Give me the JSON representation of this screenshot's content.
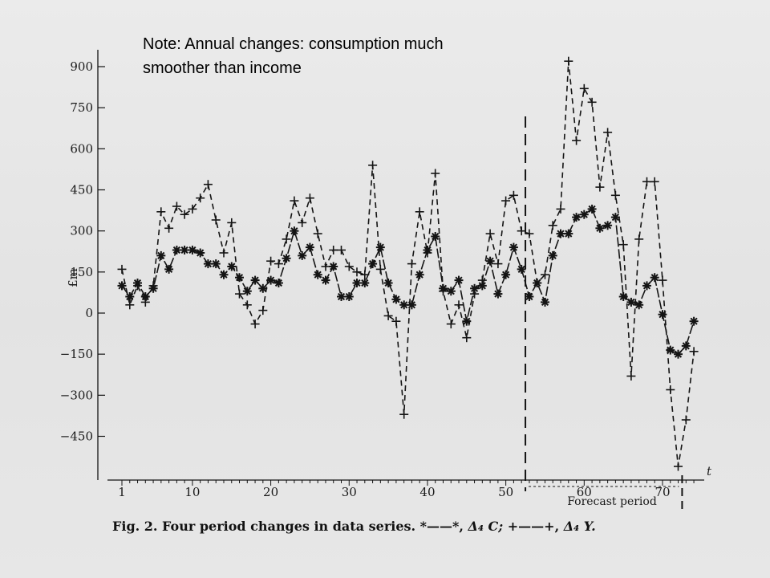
{
  "note": {
    "line1": "Note: Annual changes: consumption much",
    "line2": "smoother than income"
  },
  "caption": {
    "fig": "Fig. 2.",
    "text": "Four period changes in data series.",
    "legend_c_marker": "*——*,",
    "legend_c_symbol": "Δ₄ C;",
    "legend_y_marker": "+——+,",
    "legend_y_symbol": "Δ₄ Y."
  },
  "chart_data": {
    "type": "line",
    "ylabel": "£m",
    "xlabel": "t",
    "annotation": "Forecast period",
    "yticks": [
      900,
      750,
      600,
      450,
      300,
      150,
      0,
      -150,
      -300,
      -450
    ],
    "ytick_labels": [
      "900",
      "750",
      "600",
      "450",
      "300",
      "150",
      "0",
      "−150",
      "−300",
      "−450"
    ],
    "xticks": [
      1,
      10,
      20,
      30,
      40,
      50,
      60,
      70
    ],
    "xtick_labels": [
      "1",
      "10",
      "20",
      "30",
      "40",
      "50",
      "60",
      "70"
    ],
    "ylim": [
      -560,
      960
    ],
    "xlim": [
      0,
      75
    ],
    "forecast_start": 52.5,
    "forecast_end": 72.5,
    "x": [
      1,
      2,
      3,
      4,
      5,
      6,
      7,
      8,
      9,
      10,
      11,
      12,
      13,
      14,
      15,
      16,
      17,
      18,
      19,
      20,
      21,
      22,
      23,
      24,
      25,
      26,
      27,
      28,
      29,
      30,
      31,
      32,
      33,
      34,
      35,
      36,
      37,
      38,
      39,
      40,
      41,
      42,
      43,
      44,
      45,
      46,
      47,
      48,
      49,
      50,
      51,
      52,
      53,
      54,
      55,
      56,
      57,
      58,
      59,
      60,
      61,
      62,
      63,
      64,
      65,
      66,
      67,
      68,
      69,
      70,
      71,
      72,
      73,
      74
    ],
    "series": [
      {
        "name": "Δ₄ C",
        "marker": "*",
        "values": [
          100,
          60,
          110,
          60,
          90,
          210,
          160,
          230,
          230,
          230,
          220,
          180,
          180,
          140,
          170,
          130,
          80,
          120,
          90,
          120,
          110,
          200,
          300,
          210,
          240,
          140,
          120,
          170,
          60,
          60,
          110,
          110,
          180,
          240,
          110,
          50,
          30,
          30,
          140,
          230,
          280,
          90,
          80,
          120,
          -30,
          90,
          100,
          190,
          70,
          140,
          240,
          160,
          60,
          110,
          40,
          210,
          290,
          290,
          350,
          360,
          380,
          310,
          320,
          350,
          60,
          40,
          30,
          100,
          130,
          -5,
          -135,
          -150,
          -120,
          -30
        ]
      },
      {
        "name": "Δ₄ Y",
        "marker": "+",
        "values": [
          160,
          30,
          100,
          40,
          100,
          370,
          310,
          390,
          360,
          380,
          420,
          470,
          340,
          220,
          330,
          70,
          30,
          -40,
          10,
          190,
          180,
          270,
          410,
          330,
          420,
          290,
          170,
          230,
          230,
          170,
          150,
          140,
          540,
          160,
          -10,
          -30,
          -370,
          180,
          370,
          220,
          510,
          80,
          -40,
          30,
          -90,
          70,
          120,
          290,
          180,
          410,
          430,
          300,
          290,
          110,
          140,
          320,
          380,
          920,
          630,
          820,
          770,
          460,
          660,
          430,
          250,
          -230,
          270,
          480,
          480,
          120,
          -280,
          -560,
          -390,
          -140
        ]
      }
    ]
  }
}
